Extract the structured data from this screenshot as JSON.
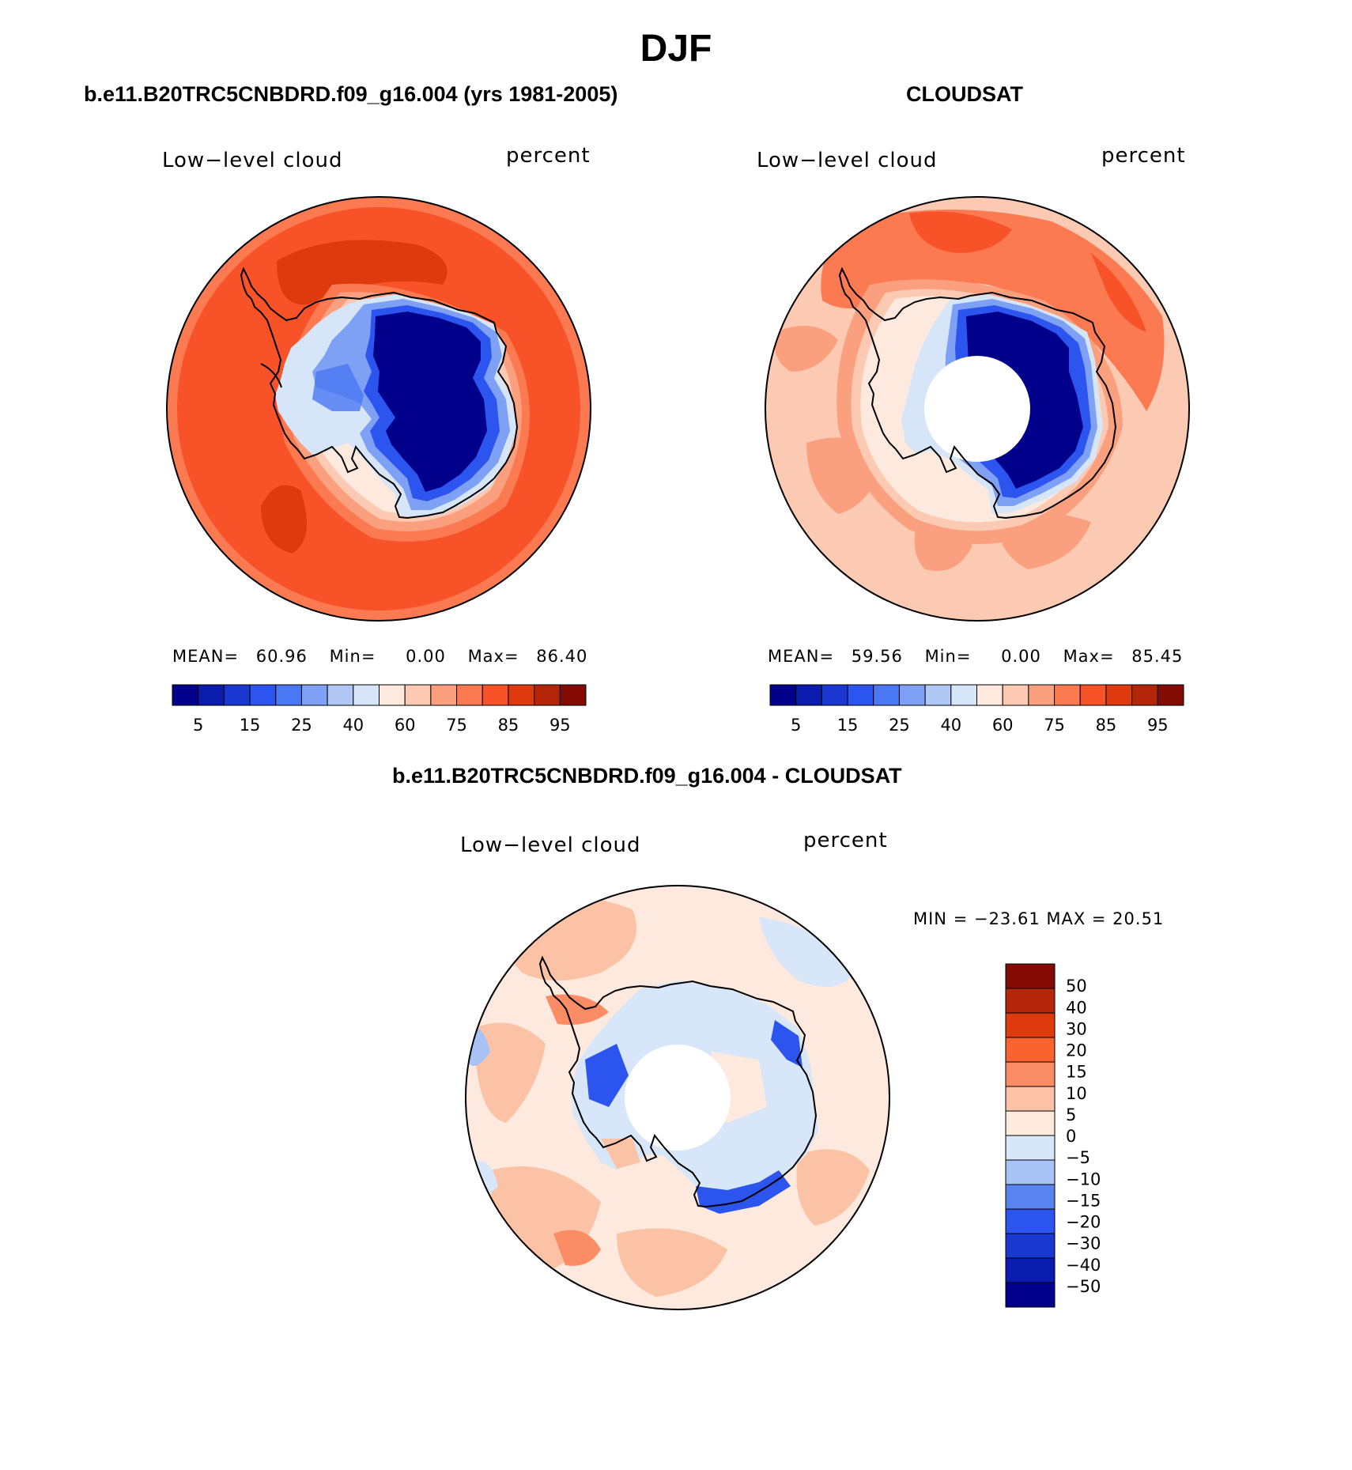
{
  "figure": {
    "title": "DJF",
    "season": "DJF"
  },
  "panels": {
    "model": {
      "header": "b.e11.B20TRC5CNBDRD.f09_g16.004 (yrs 1981-2005)",
      "left_label": "Low−level cloud",
      "right_label": "percent",
      "stats": {
        "mean_label": "MEAN=",
        "mean": "60.96",
        "min_label": "Min=",
        "min": "0.00",
        "max_label": "Max=",
        "max": "86.40"
      }
    },
    "obs": {
      "header": "CLOUDSAT",
      "left_label": "Low−level cloud",
      "right_label": "percent",
      "stats": {
        "mean_label": "MEAN=",
        "mean": "59.56",
        "min_label": "Min=",
        "min": "0.00",
        "max_label": "Max=",
        "max": "85.45"
      }
    },
    "diff": {
      "header": "b.e11.B20TRC5CNBDRD.f09_g16.004 - CLOUDSAT",
      "left_label": "Low−level cloud",
      "right_label": "percent",
      "stats_text": "MIN = −23.61 MAX =  20.51"
    }
  },
  "colorbar_abs": {
    "colors": [
      "#00008b",
      "#0a1cae",
      "#1a37d0",
      "#2b55ee",
      "#4a78f2",
      "#7ea0f5",
      "#b1c8f7",
      "#d6e6f8",
      "#fde9dd",
      "#fccab2",
      "#fba07f",
      "#fb7a51",
      "#f85328",
      "#de3a0e",
      "#b3260a",
      "#830b03"
    ],
    "tick_labels": [
      "5",
      "15",
      "25",
      "40",
      "60",
      "75",
      "85",
      "95"
    ]
  },
  "colorbar_diff": {
    "colors": [
      "#00008b",
      "#0a1cae",
      "#1a37d0",
      "#2b55ee",
      "#5a83f2",
      "#a8c2f6",
      "#d7e6f8",
      "#fde9dd",
      "#fcc2a6",
      "#fb8d66",
      "#f86330",
      "#de3a0e",
      "#b3260a",
      "#830b03"
    ],
    "tick_labels": [
      "50",
      "40",
      "30",
      "20",
      "15",
      "10",
      "5",
      "0",
      "−5",
      "−10",
      "−15",
      "−20",
      "−30",
      "−40",
      "−50"
    ]
  }
}
